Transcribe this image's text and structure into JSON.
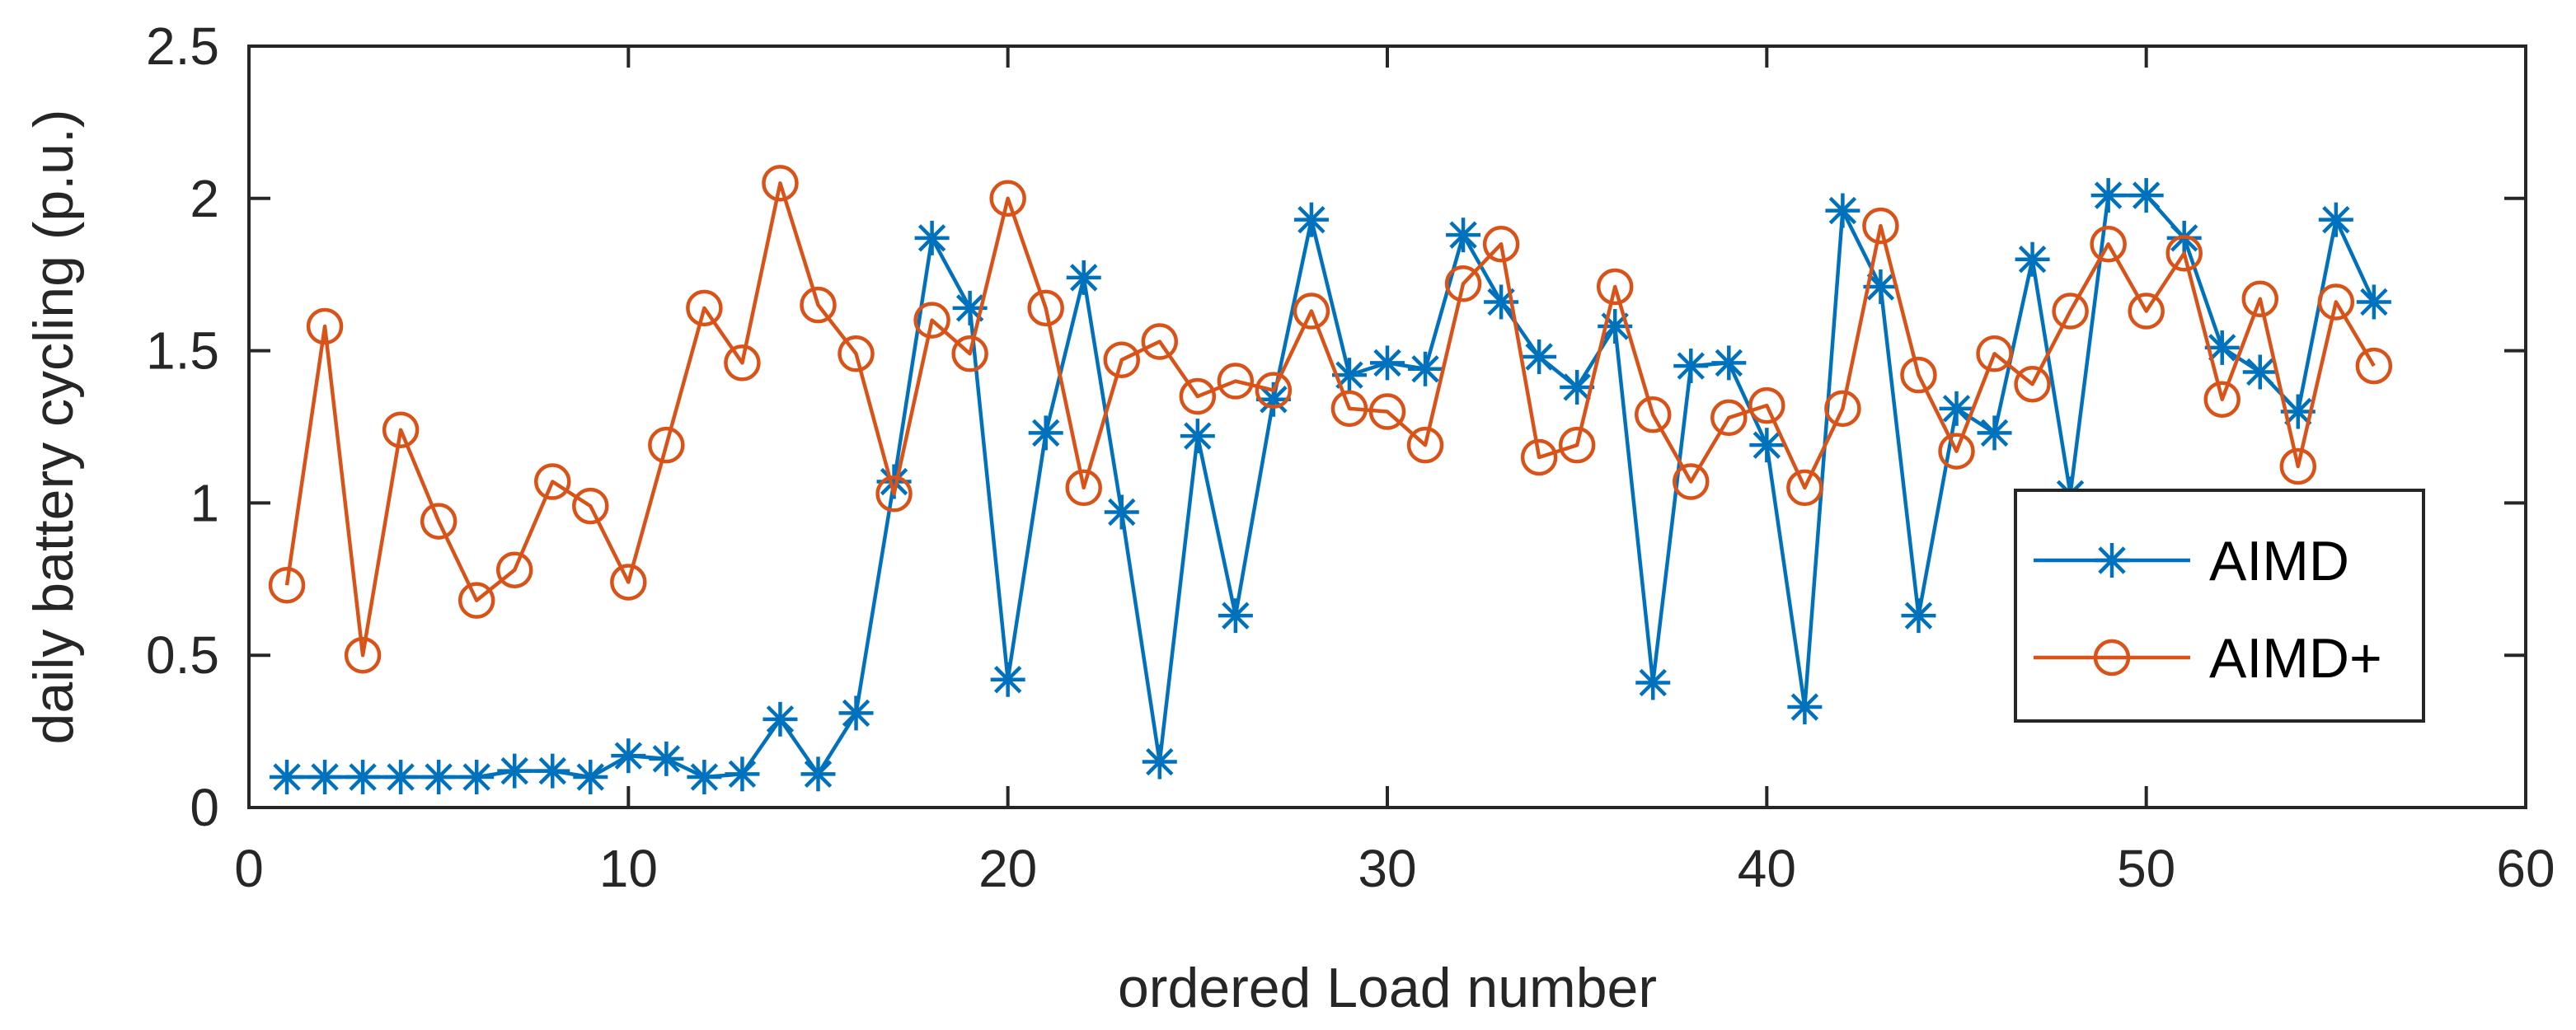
{
  "chart_data": {
    "type": "line",
    "xlabel": "ordered Load number",
    "ylabel": "daily battery cycling (p.u.)",
    "xlim": [
      0,
      60
    ],
    "ylim": [
      0,
      2.5
    ],
    "xticks": [
      0,
      10,
      20,
      30,
      40,
      50,
      60
    ],
    "xtick_labels": [
      "0",
      "10",
      "20",
      "30",
      "40",
      "50",
      "60"
    ],
    "yticks": [
      0,
      0.5,
      1,
      1.5,
      2,
      2.5
    ],
    "ytick_labels": [
      "0",
      "0.5",
      "1",
      "1.5",
      "2",
      "2.5"
    ],
    "grid": false,
    "legend_position": "lower-right",
    "x": [
      1,
      2,
      3,
      4,
      5,
      6,
      7,
      8,
      9,
      10,
      11,
      12,
      13,
      14,
      15,
      16,
      17,
      18,
      19,
      20,
      21,
      22,
      23,
      24,
      25,
      26,
      27,
      28,
      29,
      30,
      31,
      32,
      33,
      34,
      35,
      36,
      37,
      38,
      39,
      40,
      41,
      42,
      43,
      44,
      45,
      46,
      47,
      48,
      49,
      50,
      51,
      52,
      53,
      54,
      55,
      56
    ],
    "series": [
      {
        "name": "AIMD",
        "color": "#0072BD",
        "marker": "asterisk",
        "values": [
          0.1,
          0.1,
          0.1,
          0.1,
          0.1,
          0.1,
          0.12,
          0.12,
          0.1,
          0.17,
          0.16,
          0.1,
          0.11,
          0.29,
          0.11,
          0.31,
          1.07,
          1.87,
          1.64,
          0.42,
          1.23,
          1.74,
          0.97,
          0.15,
          1.22,
          0.63,
          1.34,
          1.93,
          1.42,
          1.46,
          1.44,
          1.88,
          1.66,
          1.48,
          1.38,
          1.58,
          0.41,
          1.45,
          1.46,
          1.19,
          0.33,
          1.96,
          1.71,
          0.63,
          1.31,
          1.23,
          1.8,
          1.03,
          2.01,
          2.01,
          1.87,
          1.51,
          1.43,
          1.3,
          1.93,
          1.66
        ]
      },
      {
        "name": "AIMD+",
        "color": "#D95319",
        "marker": "circle",
        "values": [
          0.73,
          1.58,
          0.5,
          1.24,
          0.94,
          0.68,
          0.78,
          1.07,
          0.99,
          0.74,
          1.19,
          1.64,
          1.46,
          2.05,
          1.65,
          1.49,
          1.03,
          1.6,
          1.49,
          2.0,
          1.64,
          1.05,
          1.47,
          1.53,
          1.35,
          1.4,
          1.37,
          1.63,
          1.31,
          1.3,
          1.19,
          1.72,
          1.85,
          1.15,
          1.19,
          1.71,
          1.29,
          1.07,
          1.28,
          1.32,
          1.05,
          1.31,
          1.91,
          1.42,
          1.17,
          1.49,
          1.39,
          1.63,
          1.85,
          1.63,
          1.82,
          1.34,
          1.67,
          1.12,
          1.66,
          1.45
        ]
      }
    ]
  }
}
